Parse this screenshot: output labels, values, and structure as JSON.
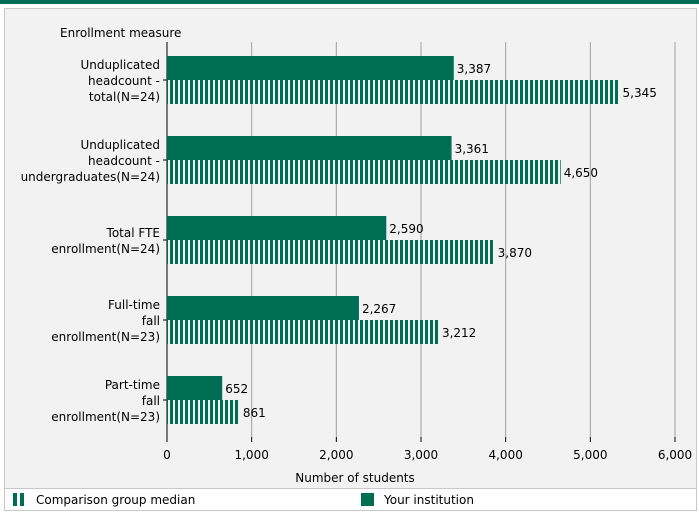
{
  "chart_data": {
    "type": "bar",
    "orientation": "horizontal",
    "y_axis_title": "Enrollment measure",
    "xlabel": "Number of students",
    "xlim": [
      0,
      6000
    ],
    "xticks": [
      "0",
      "1,000",
      "2,000",
      "3,000",
      "4,000",
      "5,000",
      "6,000"
    ],
    "tick_values": [
      0,
      1000,
      2000,
      3000,
      4000,
      5000,
      6000
    ],
    "grid": true,
    "categories": [
      {
        "lines": [
          "Unduplicated",
          "headcount -",
          "total(N=24)"
        ]
      },
      {
        "lines": [
          "Unduplicated",
          "headcount -",
          "undergraduates(N=24)"
        ]
      },
      {
        "lines": [
          "Total FTE",
          "enrollment(N=24)"
        ]
      },
      {
        "lines": [
          "Full-time",
          "fall",
          "enrollment(N=23)"
        ]
      },
      {
        "lines": [
          "Part-time",
          "fall",
          "enrollment(N=23)"
        ]
      }
    ],
    "series": [
      {
        "name": "Your institution",
        "style": "solid",
        "color": "#006e52",
        "values": [
          3387,
          3361,
          2590,
          2267,
          652
        ],
        "labels": [
          "3,387",
          "3,361",
          "2,590",
          "2,267",
          "652"
        ]
      },
      {
        "name": "Comparison group median",
        "style": "striped",
        "color": "#006e52",
        "values": [
          5345,
          4650,
          3870,
          3212,
          861
        ],
        "labels": [
          "5,345",
          "4,650",
          "3,870",
          "3,212",
          "861"
        ]
      }
    ],
    "legend_position": "bottom"
  },
  "legend": {
    "comparison_label": "Comparison group median",
    "institution_label": "Your institution"
  },
  "colors": {
    "accent": "#006e52",
    "panel_bg": "#f2f2f2",
    "grid": "#a0a0a0"
  }
}
